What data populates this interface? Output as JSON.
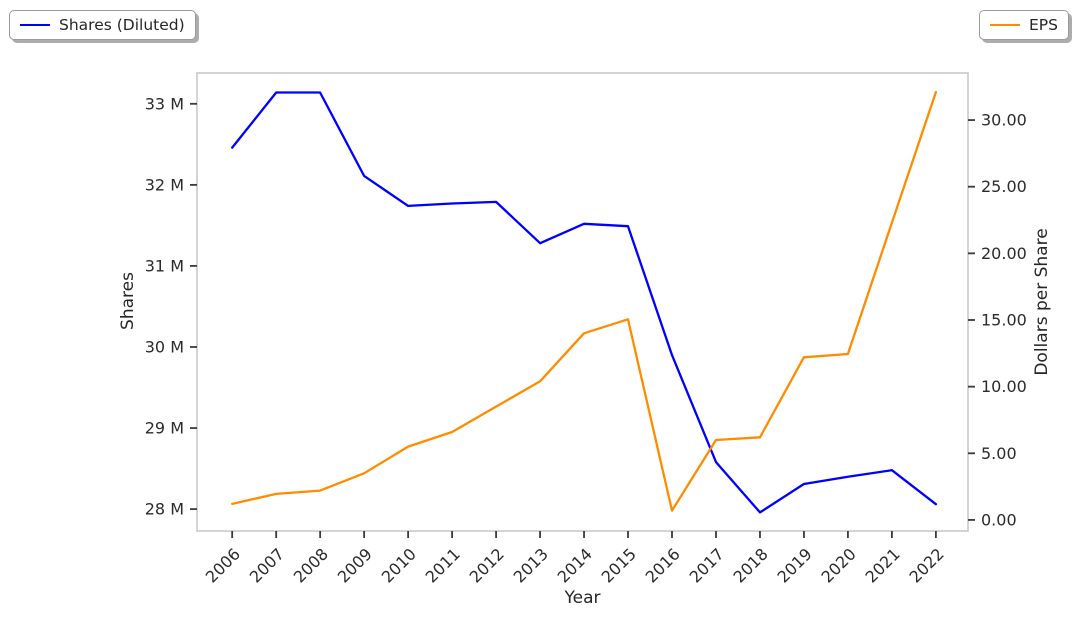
{
  "figure": {
    "background": "#ffffff"
  },
  "legend_left": {
    "label": "Shares (Diluted)",
    "color": "#0000ff"
  },
  "legend_right": {
    "label": "EPS",
    "color": "#ff8c00"
  },
  "chart_data": {
    "type": "line",
    "title": "",
    "xlabel": "Year",
    "ylabel_left": "Shares",
    "ylabel_right": "Dollars per Share",
    "grid": false,
    "legend_position": "outside axes: top-left (Shares) and top-right (EPS)",
    "x": [
      2006,
      2007,
      2008,
      2009,
      2010,
      2011,
      2012,
      2013,
      2014,
      2015,
      2016,
      2017,
      2018,
      2019,
      2020,
      2021,
      2022
    ],
    "xticklabels": [
      "2006",
      "2007",
      "2008",
      "2009",
      "2010",
      "2011",
      "2012",
      "2013",
      "2014",
      "2015",
      "2016",
      "2017",
      "2018",
      "2019",
      "2020",
      "2021",
      "2022"
    ],
    "series": [
      {
        "name": "Shares (Diluted)",
        "axis": "left",
        "units": "millions of shares",
        "color": "#0000ff",
        "values": [
          32.46,
          33.14,
          33.14,
          32.11,
          31.74,
          31.77,
          31.79,
          31.28,
          31.52,
          31.49,
          29.9,
          28.58,
          27.96,
          28.31,
          28.4,
          28.48,
          28.06
        ]
      },
      {
        "name": "EPS",
        "axis": "right",
        "units": "dollars per share",
        "color": "#ff8c00",
        "values": [
          1.2,
          1.95,
          2.2,
          3.5,
          5.5,
          6.6,
          8.5,
          10.4,
          14.0,
          15.05,
          0.7,
          6.0,
          6.2,
          12.2,
          12.45,
          22.3,
          32.1
        ]
      }
    ],
    "yticks_left": {
      "values": [
        28,
        29,
        30,
        31,
        32,
        33
      ],
      "labels": [
        "28 M",
        "29 M",
        "30 M",
        "31 M",
        "32 M",
        "33 M"
      ]
    },
    "yticks_right": {
      "values": [
        0,
        5,
        10,
        15,
        20,
        25,
        30
      ],
      "labels": [
        "0.00",
        "5.00",
        "10.00",
        "15.00",
        "20.00",
        "25.00",
        "30.00"
      ]
    },
    "ylim_left": [
      27.73,
      33.38
    ],
    "ylim_right": [
      -0.83,
      33.53
    ],
    "xlim": [
      2005.2,
      2022.73
    ],
    "colors": {
      "spine": "#c9c9c9",
      "tick_mark": "#3a3a3a",
      "tick_text": "#2b2b2b"
    }
  }
}
